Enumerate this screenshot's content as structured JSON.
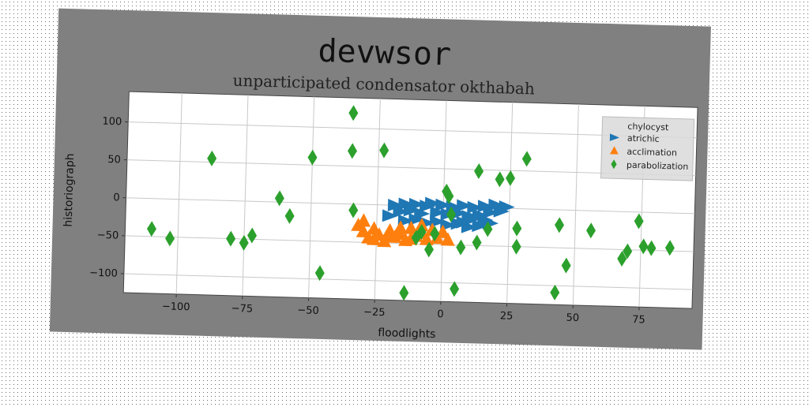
{
  "chart_data": {
    "type": "scatter",
    "title": "devwsor",
    "subtitle": "unparticipated condensator okthabah",
    "xlabel": "floodlights",
    "ylabel": "historiograph",
    "xlim": [
      -120,
      95
    ],
    "ylim": [
      -125,
      140
    ],
    "xticks": [
      -100,
      -75,
      -50,
      -25,
      0,
      25,
      50,
      75
    ],
    "yticks": [
      -100,
      -50,
      0,
      50,
      100
    ],
    "xtick_labels": [
      "−100",
      "−75",
      "−50",
      "−25",
      "0",
      "25",
      "50",
      "75"
    ],
    "ytick_labels": [
      "−100",
      "−50",
      "0",
      "50",
      "100"
    ],
    "grid": true,
    "legend_title": "chylocyst",
    "legend_position": "top-right",
    "series": [
      {
        "name": "atrichic",
        "marker": "triangle-right",
        "color": "#1f77b4",
        "points": [
          [
            -18,
            0
          ],
          [
            -14,
            2
          ],
          [
            -10,
            2
          ],
          [
            -6,
            0
          ],
          [
            -4,
            4
          ],
          [
            0,
            2
          ],
          [
            4,
            0
          ],
          [
            8,
            2
          ],
          [
            12,
            0
          ],
          [
            16,
            2
          ],
          [
            20,
            4
          ],
          [
            24,
            2
          ],
          [
            -16,
            -8
          ],
          [
            -12,
            -6
          ],
          [
            -8,
            -10
          ],
          [
            -2,
            -8
          ],
          [
            2,
            -10
          ],
          [
            6,
            -8
          ],
          [
            10,
            -12
          ],
          [
            14,
            -10
          ],
          [
            18,
            -6
          ],
          [
            22,
            -4
          ],
          [
            -14,
            -20
          ],
          [
            -10,
            -18
          ],
          [
            -6,
            -22
          ],
          [
            -2,
            -20
          ],
          [
            2,
            -24
          ],
          [
            6,
            -22
          ],
          [
            10,
            -26
          ],
          [
            14,
            -24
          ],
          [
            18,
            -20
          ],
          [
            -20,
            -14
          ],
          [
            8,
            -20
          ],
          [
            16,
            -16
          ],
          [
            12,
            -14
          ]
        ]
      },
      {
        "name": "acclimation",
        "marker": "triangle-up",
        "color": "#ff7f0e",
        "points": [
          [
            -32,
            -28
          ],
          [
            -30,
            -36
          ],
          [
            -28,
            -44
          ],
          [
            -26,
            -32
          ],
          [
            -24,
            -40
          ],
          [
            -22,
            -48
          ],
          [
            -20,
            -34
          ],
          [
            -18,
            -42
          ],
          [
            -16,
            -38
          ],
          [
            -14,
            -46
          ],
          [
            -12,
            -30
          ],
          [
            -10,
            -40
          ],
          [
            -8,
            -36
          ],
          [
            -6,
            -44
          ],
          [
            -4,
            -32
          ],
          [
            -2,
            -42
          ],
          [
            -30,
            -22
          ],
          [
            -26,
            -46
          ],
          [
            -20,
            -42
          ],
          [
            -12,
            -44
          ],
          [
            0,
            -34
          ],
          [
            -8,
            -26
          ],
          [
            -16,
            -30
          ],
          [
            2,
            -44
          ]
        ]
      },
      {
        "name": "parabolization",
        "marker": "diamond",
        "color": "#2ca02c",
        "points": [
          [
            -110,
            -40
          ],
          [
            -103,
            -52
          ],
          [
            -88,
            55
          ],
          [
            -80,
            -50
          ],
          [
            -75,
            -55
          ],
          [
            -72,
            -45
          ],
          [
            -62,
            5
          ],
          [
            -58,
            -18
          ],
          [
            -50,
            60
          ],
          [
            -46,
            -92
          ],
          [
            -35,
            70
          ],
          [
            -35,
            120
          ],
          [
            -34,
            -8
          ],
          [
            -23,
            72
          ],
          [
            -14,
            -115
          ],
          [
            -10,
            -42
          ],
          [
            -8,
            -34
          ],
          [
            -5,
            -57
          ],
          [
            -3,
            -36
          ],
          [
            1,
            20
          ],
          [
            2,
            14
          ],
          [
            3,
            -10
          ],
          [
            5,
            -108
          ],
          [
            7,
            -53
          ],
          [
            13,
            -46
          ],
          [
            13,
            48
          ],
          [
            17,
            -28
          ],
          [
            21,
            38
          ],
          [
            25,
            40
          ],
          [
            28,
            -26
          ],
          [
            28,
            -50
          ],
          [
            31,
            66
          ],
          [
            43,
            -109
          ],
          [
            44,
            -20
          ],
          [
            47,
            -73
          ],
          [
            56,
            -26
          ],
          [
            68,
            -62
          ],
          [
            70,
            -52
          ],
          [
            74,
            -12
          ],
          [
            76,
            -45
          ],
          [
            79,
            -47
          ],
          [
            86,
            -46
          ]
        ]
      }
    ]
  }
}
